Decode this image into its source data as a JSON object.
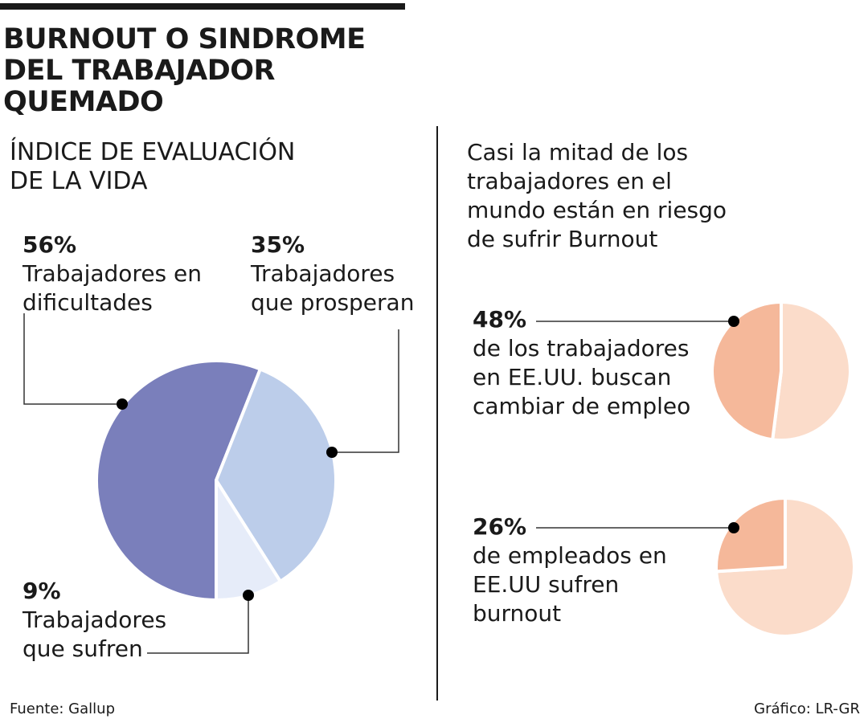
{
  "title": "BURNOUT O SINDROME DEL TRABAJADOR QUEMADO",
  "source": "Fuente: Gallup",
  "credit": "Gráfico: LR-GR",
  "chart_data": [
    {
      "type": "pie",
      "title": "ÍNDICE DE EVALUACIÓN DE LA VIDA",
      "slices": [
        {
          "pct_label": "56%",
          "label": "Trabajadores en dificultades",
          "value": 56,
          "color": "#7a7fbb"
        },
        {
          "pct_label": "35%",
          "label": "Trabajadores que prosperan",
          "value": 35,
          "color": "#bccdea"
        },
        {
          "pct_label": "9%",
          "label": "Trabajadores que sufren",
          "value": 9,
          "color": "#e6ecf9"
        }
      ]
    },
    {
      "type": "pie",
      "title": "Casi la mitad de los trabajadores en el mundo están en riesgo de sufrir Burnout",
      "slices": [
        {
          "pct_label": "48%",
          "label": "de los trabajadores en EE.UU. buscan cambiar de empleo",
          "value": 48,
          "color": "#f5b89a"
        },
        {
          "value": 52,
          "color": "#fbdcca"
        }
      ]
    },
    {
      "type": "pie",
      "slices": [
        {
          "pct_label": "26%",
          "label": "de empleados en EE.UU sufren burnout",
          "value": 26,
          "color": "#f5b89a"
        },
        {
          "value": 74,
          "color": "#fbdcca"
        }
      ]
    }
  ]
}
